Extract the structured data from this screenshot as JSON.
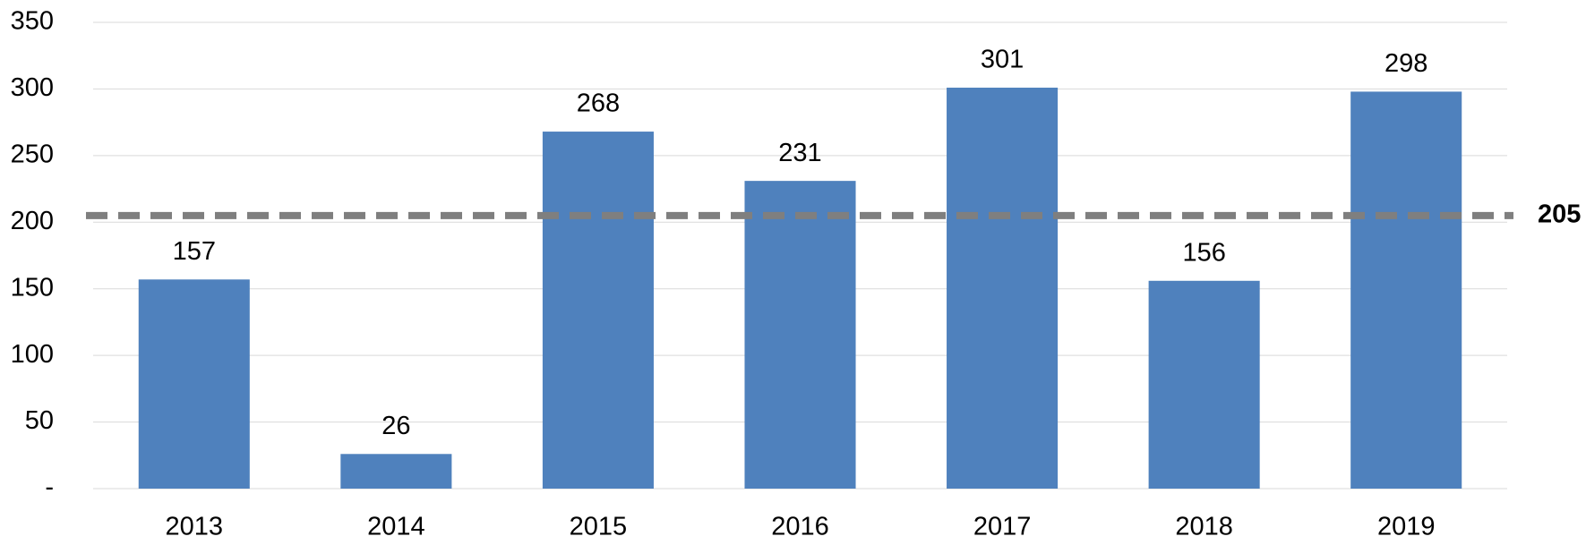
{
  "chart_data": {
    "type": "bar",
    "categories": [
      "2013",
      "2014",
      "2015",
      "2016",
      "2017",
      "2018",
      "2019"
    ],
    "values": [
      157,
      26,
      268,
      231,
      301,
      156,
      298
    ],
    "color": "#4f81bd",
    "ylim": [
      0,
      350
    ],
    "yticks": [
      {
        "value": 0,
        "label": "-"
      },
      50,
      100,
      150,
      200,
      250,
      300,
      350
    ],
    "grid": true,
    "reference_line": 205,
    "reference_color": "#7f7f7f"
  }
}
